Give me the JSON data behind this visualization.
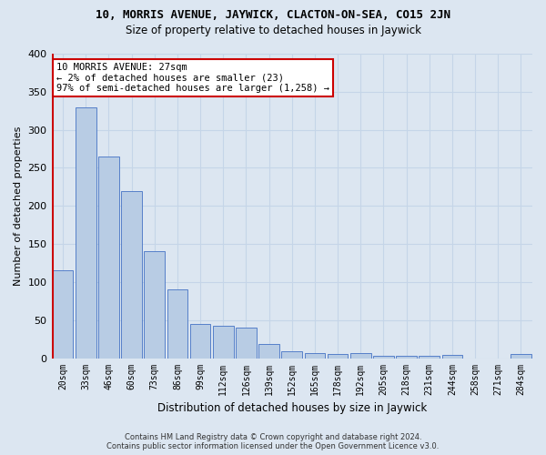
{
  "title": "10, MORRIS AVENUE, JAYWICK, CLACTON-ON-SEA, CO15 2JN",
  "subtitle": "Size of property relative to detached houses in Jaywick",
  "xlabel": "Distribution of detached houses by size in Jaywick",
  "ylabel": "Number of detached properties",
  "categories": [
    "20sqm",
    "33sqm",
    "46sqm",
    "60sqm",
    "73sqm",
    "86sqm",
    "99sqm",
    "112sqm",
    "126sqm",
    "139sqm",
    "152sqm",
    "165sqm",
    "178sqm",
    "192sqm",
    "205sqm",
    "218sqm",
    "231sqm",
    "244sqm",
    "258sqm",
    "271sqm",
    "284sqm"
  ],
  "values": [
    115,
    330,
    265,
    220,
    140,
    90,
    45,
    42,
    40,
    19,
    9,
    7,
    6,
    7,
    3,
    3,
    3,
    4,
    0,
    0,
    5
  ],
  "bar_color": "#b8cce4",
  "bar_edge_color": "#4472c4",
  "highlight_color": "#cc0000",
  "annotation_text": "10 MORRIS AVENUE: 27sqm\n← 2% of detached houses are smaller (23)\n97% of semi-detached houses are larger (1,258) →",
  "annotation_box_facecolor": "#ffffff",
  "annotation_box_edgecolor": "#cc0000",
  "grid_color": "#c5d5e8",
  "background_color": "#dce6f1",
  "ylim": [
    0,
    400
  ],
  "yticks": [
    0,
    50,
    100,
    150,
    200,
    250,
    300,
    350,
    400
  ],
  "footer_line1": "Contains HM Land Registry data © Crown copyright and database right 2024.",
  "footer_line2": "Contains public sector information licensed under the Open Government Licence v3.0."
}
